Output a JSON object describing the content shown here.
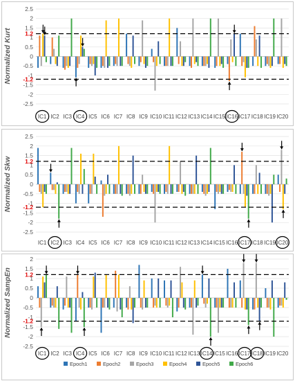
{
  "colors": {
    "Epoch1": "#2e75b6",
    "Epoch2": "#ed7d31",
    "Epoch3": "#a5a5a5",
    "Epoch4": "#ffc000",
    "Epoch5": "#2f5597",
    "Epoch6": "#41a949",
    "threshold_label": "#e00000",
    "dashed_line": "#000000"
  },
  "chart_data": [
    {
      "type": "bar",
      "ylabel": "Normalized Kurt",
      "ylim": [
        -2.5,
        2.5
      ],
      "yticks": [
        "2.5",
        "2",
        "1.5",
        "1.2",
        "1",
        "0.5",
        "0",
        "-0.5",
        "-1",
        "-1.2",
        "-1.5",
        "-2",
        "-2.5"
      ],
      "threshold": 1.2,
      "categories": [
        "IC1",
        "IC2",
        "IC3",
        "IC4",
        "IC5",
        "IC6",
        "IC7",
        "IC8",
        "IC9",
        "IC10",
        "IC11",
        "IC12",
        "IC13",
        "IC14",
        "IC15",
        "IC16",
        "IC17",
        "IC18",
        "IC19",
        "IC20"
      ],
      "circled": [
        "IC1",
        "IC4",
        "IC16"
      ],
      "series": [
        {
          "name": "Epoch1",
          "values": [
            -0.6,
            -0.4,
            -0.6,
            -1.1,
            -0.6,
            -0.6,
            -0.5,
            1.2,
            -0.5,
            0.4,
            -0.5,
            1.5,
            -0.5,
            -0.5,
            -0.6,
            -0.4,
            1.2,
            -0.5,
            -0.5,
            -0.4
          ]
        },
        {
          "name": "Epoch2",
          "values": [
            1.1,
            1.0,
            -0.7,
            -0.6,
            -0.4,
            -0.5,
            -0.4,
            -0.4,
            -0.3,
            -0.3,
            -0.5,
            -0.4,
            -0.6,
            -0.5,
            -0.5,
            -1.3,
            -0.5,
            1.6,
            -0.4,
            -0.4
          ]
        },
        {
          "name": "Epoch3",
          "values": [
            -0.5,
            0.4,
            -0.5,
            -0.4,
            -0.5,
            -0.6,
            -0.5,
            -0.5,
            1.9,
            -1.8,
            -0.5,
            0.8,
            2.0,
            -0.5,
            2.0,
            0.9,
            -0.3,
            0.9,
            -0.5,
            2.0
          ]
        },
        {
          "name": "Epoch4",
          "values": [
            1.2,
            -0.4,
            -0.6,
            1.1,
            -0.4,
            1.9,
            2.0,
            -0.6,
            -0.4,
            -0.5,
            2.0,
            -0.5,
            -0.4,
            -0.4,
            -0.5,
            -0.3,
            -1.1,
            -0.5,
            -0.6,
            -0.6
          ]
        },
        {
          "name": "Epoch5",
          "values": [
            1.1,
            -0.5,
            -0.5,
            0.5,
            -1.0,
            -0.6,
            -0.5,
            1.1,
            -0.6,
            0.8,
            -0.5,
            -0.5,
            -0.3,
            -0.6,
            -0.4,
            1.2,
            -0.6,
            1.1,
            -0.5,
            -0.4
          ]
        },
        {
          "name": "Epoch6",
          "values": [
            -0.3,
            1.1,
            2.0,
            0.4,
            -0.6,
            -0.5,
            -0.5,
            -0.4,
            -0.5,
            -0.4,
            -0.5,
            -0.3,
            -0.5,
            2.0,
            -0.6,
            -0.5,
            -0.6,
            -0.6,
            2.0,
            -0.5
          ]
        }
      ],
      "arrows": [
        {
          "category": "IC1",
          "series": "Epoch4",
          "direction": "down"
        },
        {
          "category": "IC1",
          "series": "Epoch5",
          "direction": "down"
        },
        {
          "category": "IC4",
          "series": "Epoch1",
          "direction": "up"
        },
        {
          "category": "IC4",
          "series": "Epoch5",
          "direction": "down"
        },
        {
          "category": "IC16",
          "series": "Epoch2",
          "direction": "up"
        },
        {
          "category": "IC16",
          "series": "Epoch5",
          "direction": "down"
        }
      ]
    },
    {
      "type": "bar",
      "ylabel": "Normalized Skw",
      "ylim": [
        -2.5,
        2.5
      ],
      "yticks": [
        "2.5",
        "2",
        "1.5",
        "1.2",
        "1",
        "0.5",
        "0",
        "-0.5",
        "-1",
        "-1.2",
        "-1.5",
        "-2",
        "-2.5"
      ],
      "threshold": 1.2,
      "categories": [
        "IC1",
        "IC2",
        "IC3",
        "IC4",
        "IC5",
        "IC6",
        "IC7",
        "IC8",
        "IC9",
        "IC10",
        "IC11",
        "IC12",
        "IC13",
        "IC14",
        "IC15",
        "IC16",
        "IC17",
        "IC18",
        "IC19",
        "IC20"
      ],
      "circled": [
        "IC2",
        "IC17",
        "IC20"
      ],
      "series": [
        {
          "name": "Epoch1",
          "values": [
            1.9,
            0.6,
            -0.5,
            -1.0,
            -1.0,
            0.2,
            -0.5,
            -0.5,
            -0.5,
            -0.4,
            -0.5,
            -0.4,
            -0.5,
            -0.4,
            -1.3,
            -0.4,
            -0.5,
            -0.5,
            -0.5,
            0.5
          ]
        },
        {
          "name": "Epoch2",
          "values": [
            -0.4,
            -0.3,
            -0.4,
            -0.4,
            -0.5,
            -1.7,
            -0.5,
            -0.5,
            -0.5,
            -0.5,
            -0.4,
            -0.4,
            -0.5,
            -0.5,
            -0.4,
            -0.3,
            1.7,
            -0.5,
            -0.5,
            -0.4
          ]
        },
        {
          "name": "Epoch3",
          "values": [
            -0.5,
            -0.3,
            -0.4,
            -0.5,
            -0.5,
            -0.6,
            -0.5,
            -0.6,
            0.5,
            -2.0,
            -0.5,
            1.2,
            -0.5,
            -0.6,
            -0.5,
            -0.4,
            -0.5,
            1.0,
            -0.6,
            1.8
          ]
        },
        {
          "name": "Epoch4",
          "values": [
            -1.2,
            -0.5,
            -0.5,
            1.6,
            1.6,
            -0.5,
            2.0,
            -0.5,
            -0.4,
            -0.4,
            2.0,
            -0.5,
            -0.5,
            -0.5,
            -0.4,
            -0.4,
            -1.2,
            -0.5,
            -0.5,
            -1.3
          ]
        },
        {
          "name": "Epoch5",
          "values": [
            -0.4,
            0.1,
            -0.5,
            -0.5,
            0.4,
            0.5,
            -0.5,
            1.5,
            -0.5,
            -0.4,
            -0.5,
            -0.4,
            1.5,
            -0.4,
            -0.5,
            1.0,
            -0.6,
            0.6,
            -2.0,
            -0.5
          ]
        },
        {
          "name": "Epoch6",
          "values": [
            -0.5,
            -1.8,
            1.9,
            0.8,
            -0.5,
            -0.5,
            -0.6,
            -0.5,
            -0.5,
            -0.5,
            -0.5,
            -0.6,
            -0.5,
            1.9,
            -0.5,
            -0.5,
            -1.8,
            -0.5,
            0.5,
            0.3
          ]
        }
      ],
      "arrows": [
        {
          "category": "IC2",
          "series": "Epoch1",
          "direction": "down"
        },
        {
          "category": "IC2",
          "series": "Epoch6",
          "direction": "up"
        },
        {
          "category": "IC17",
          "series": "Epoch2",
          "direction": "down"
        },
        {
          "category": "IC17",
          "series": "Epoch6",
          "direction": "up"
        },
        {
          "category": "IC20",
          "series": "Epoch3",
          "direction": "down"
        },
        {
          "category": "IC20",
          "series": "Epoch4",
          "direction": "up"
        }
      ]
    },
    {
      "type": "bar",
      "ylabel": "Normalized SampEn",
      "ylim": [
        -2.5,
        2
      ],
      "yticks": [
        "2",
        "1.5",
        "1.2",
        "1",
        "0.5",
        "0",
        "-0.5",
        "-1",
        "-1.2",
        "-1.5",
        "-2",
        "-2.5"
      ],
      "threshold": 1.2,
      "categories": [
        "IC1",
        "IC2",
        "IC3",
        "IC4",
        "IC5",
        "IC6",
        "IC7",
        "IC8",
        "IC9",
        "IC10",
        "IC11",
        "IC12",
        "IC13",
        "IC14",
        "IC15",
        "IC16",
        "IC17",
        "IC18",
        "IC19",
        "IC20"
      ],
      "circled": [
        "IC1",
        "IC4",
        "IC14",
        "IC17",
        "IC18"
      ],
      "series": [
        {
          "name": "Epoch1",
          "values": [
            0.6,
            -0.5,
            -0.6,
            -1.2,
            -0.5,
            -1.8,
            -0.5,
            -0.5,
            1.7,
            1.0,
            0.9,
            -0.7,
            -0.5,
            1.2,
            -0.5,
            1.5,
            0.9,
            -0.6,
            0.5,
            -0.5
          ]
        },
        {
          "name": "Epoch2",
          "values": [
            -0.5,
            -0.4,
            -0.4,
            1.2,
            -0.5,
            -0.5,
            1.4,
            -0.6,
            -0.5,
            -0.5,
            -0.4,
            -0.5,
            -0.5,
            -0.3,
            -0.5,
            -0.5,
            -0.5,
            -0.6,
            -0.5,
            -0.4
          ]
        },
        {
          "name": "Epoch3",
          "values": [
            -1.5,
            -0.5,
            1.1,
            -0.5,
            -0.6,
            -0.5,
            -0.7,
            0.6,
            -0.6,
            -0.4,
            -0.5,
            1.6,
            -1.9,
            -0.5,
            -1.8,
            -0.5,
            1.8,
            1.8,
            -0.5,
            -0.4
          ]
        },
        {
          "name": "Epoch4",
          "values": [
            1.1,
            -0.5,
            -0.5,
            -0.6,
            1.1,
            1.2,
            1.2,
            -0.6,
            0.9,
            -0.5,
            -0.4,
            0.8,
            0.9,
            -0.3,
            -0.5,
            -0.5,
            -0.6,
            -0.5,
            -0.6,
            -0.5
          ]
        },
        {
          "name": "Epoch5",
          "values": [
            0.8,
            0.6,
            -0.5,
            0.3,
            1.3,
            -0.5,
            -0.6,
            -1.3,
            -0.5,
            1.0,
            0.9,
            -0.5,
            -0.5,
            1.0,
            -0.5,
            0.8,
            -0.6,
            -1.2,
            0.9,
            0.8
          ]
        },
        {
          "name": "Epoch6",
          "values": [
            1.2,
            -1.6,
            -1.8,
            -1.5,
            -0.5,
            -0.6,
            -1.0,
            -0.5,
            -0.5,
            -0.5,
            -1.0,
            -0.6,
            -0.4,
            -2.0,
            -0.5,
            -0.5,
            -1.4,
            -0.5,
            -2.0,
            -0.1
          ]
        }
      ],
      "arrows": [
        {
          "category": "IC1",
          "series": "Epoch3",
          "direction": "up"
        },
        {
          "category": "IC1",
          "series": "Epoch6",
          "direction": "down"
        },
        {
          "category": "IC4",
          "series": "Epoch2",
          "direction": "down"
        },
        {
          "category": "IC4",
          "series": "Epoch6",
          "direction": "up"
        },
        {
          "category": "IC14",
          "series": "Epoch1",
          "direction": "down"
        },
        {
          "category": "IC14",
          "series": "Epoch6",
          "direction": "up"
        },
        {
          "category": "IC17",
          "series": "Epoch3",
          "direction": "down"
        },
        {
          "category": "IC17",
          "series": "Epoch6",
          "direction": "up"
        },
        {
          "category": "IC18",
          "series": "Epoch3",
          "direction": "down"
        },
        {
          "category": "IC18",
          "series": "Epoch5",
          "direction": "up"
        }
      ],
      "legend": [
        "Epoch1",
        "Epoch2",
        "Epoch3",
        "Epoch4",
        "Epoch5",
        "Epoch6"
      ]
    }
  ]
}
